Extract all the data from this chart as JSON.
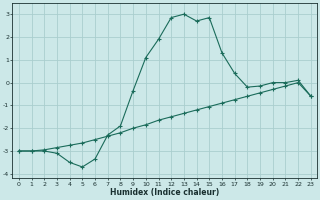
{
  "xlabel": "Humidex (Indice chaleur)",
  "background_color": "#cce8e8",
  "grid_color": "#aacece",
  "line_color": "#1a6b5a",
  "line1_x": [
    0,
    1,
    2,
    3,
    4,
    5,
    6,
    7,
    8,
    9,
    10,
    11,
    12,
    13,
    14,
    15,
    16,
    17,
    18,
    19,
    20,
    21,
    22,
    23
  ],
  "line1_y": [
    -3.0,
    -3.0,
    -3.0,
    -3.1,
    -3.5,
    -3.7,
    -3.35,
    -2.3,
    -1.9,
    -0.35,
    1.1,
    1.9,
    2.85,
    3.0,
    2.7,
    2.85,
    1.3,
    0.4,
    -0.2,
    -0.15,
    0.0,
    0.0,
    0.1,
    -0.6
  ],
  "line2_x": [
    0,
    1,
    2,
    3,
    4,
    5,
    6,
    7,
    8,
    9,
    10,
    11,
    12,
    13,
    14,
    15,
    16,
    17,
    18,
    19,
    20,
    21,
    22,
    23
  ],
  "line2_y": [
    -3.0,
    -3.0,
    -2.95,
    -2.85,
    -2.75,
    -2.65,
    -2.5,
    -2.35,
    -2.2,
    -2.0,
    -1.85,
    -1.65,
    -1.5,
    -1.35,
    -1.2,
    -1.05,
    -0.9,
    -0.75,
    -0.6,
    -0.45,
    -0.3,
    -0.15,
    0.0,
    -0.6
  ],
  "xlim": [
    -0.5,
    23.5
  ],
  "ylim": [
    -4.2,
    3.5
  ],
  "yticks": [
    -4,
    -3,
    -2,
    -1,
    0,
    1,
    2,
    3
  ],
  "xticks": [
    0,
    1,
    2,
    3,
    4,
    5,
    6,
    7,
    8,
    9,
    10,
    11,
    12,
    13,
    14,
    15,
    16,
    17,
    18,
    19,
    20,
    21,
    22,
    23
  ]
}
